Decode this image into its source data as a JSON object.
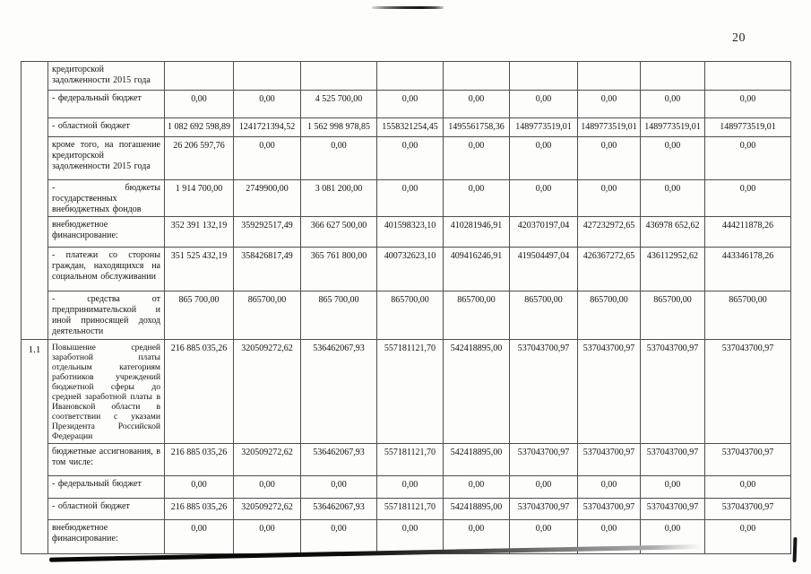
{
  "page": {
    "number": "20"
  },
  "colors": {
    "ink": "#1c1c1c",
    "table_line": "#4e4e4e",
    "artifact_black": "#0c0c0c"
  },
  "table": {
    "rows": [
      {
        "numcell": {
          "text": "",
          "rowspan": 8
        },
        "label": "кредиторской задолженности 2015 года",
        "values": [
          "",
          "",
          "",
          "",
          "",
          "",
          "",
          "",
          ""
        ]
      },
      {
        "label": "- федеральный бюджет",
        "values": [
          "0,00",
          "0,00",
          "4 525 700,00",
          "0,00",
          "0,00",
          "0,00",
          "0,00",
          "0,00",
          "0,00"
        ]
      },
      {
        "label": "- областной бюджет",
        "values": [
          "1 082 692 598,89",
          "1241721394,52",
          "1 562 998 978,85",
          "1558321254,45",
          "1495561758,36",
          "1489773519,01",
          "1489773519,01",
          "1489773519,01",
          "1489773519,01"
        ]
      },
      {
        "label": "кроме того, на погашение кредиторской задолженности 2015 года",
        "values": [
          "26 206 597,76",
          "0,00",
          "0,00",
          "0,00",
          "0,00",
          "0,00",
          "0,00",
          "0,00",
          "0,00"
        ]
      },
      {
        "label": "- бюджеты государственных внебюджетных фондов",
        "values": [
          "1 914 700,00",
          "2749900,00",
          "3 081 200,00",
          "0,00",
          "0,00",
          "0,00",
          "0,00",
          "0,00",
          "0,00"
        ]
      },
      {
        "label": "внебюджетное финансирование:",
        "values": [
          "352 391 132,19",
          "359292517,49",
          "366 627 500,00",
          "401598323,10",
          "410281946,91",
          "420370197,04",
          "427232972,65",
          "436978 652,62",
          "444211878,26"
        ]
      },
      {
        "label": "- платежи со стороны граждан, находящихся на социальном обслуживании",
        "values": [
          "351 525 432,19",
          "358426817,49",
          "365 761 800,00",
          "400732623,10",
          "409416246,91",
          "419504497,04",
          "426367272,65",
          "436112952,62",
          "443346178,26"
        ]
      },
      {
        "label": "- средства от предпринимательской и иной приносящей доход деятельности",
        "values": [
          "865 700,00",
          "865700,00",
          "865 700,00",
          "865700,00",
          "865700,00",
          "865700,00",
          "865700,00",
          "865700,00",
          "865700,00"
        ]
      },
      {
        "numcell": {
          "text": "1.1",
          "rowspan": 5
        },
        "label": "Повышение средней заработной платы отдельным категориям работников учреждений бюджетной сферы до средней заработной платы в Ивановской области в соответствии с указами Президента Российской Федерации",
        "values": [
          "216 885 035,26",
          "320509272,62",
          "536462067,93",
          "557181121,70",
          "542418895,00",
          "537043700,97",
          "537043700,97",
          "537043700,97",
          "537043700,97"
        ]
      },
      {
        "label": "бюджетные ассигнования, в том числе:",
        "values": [
          "216 885 035,26",
          "320509272,62",
          "536462067,93",
          "557181121,70",
          "542418895,00",
          "537043700,97",
          "537043700,97",
          "537043700,97",
          "537043700,97"
        ]
      },
      {
        "label": "- федеральный бюджет",
        "values": [
          "0,00",
          "0,00",
          "0,00",
          "0,00",
          "0,00",
          "0,00",
          "0,00",
          "0,00",
          "0,00"
        ]
      },
      {
        "label": "- областной бюджет",
        "values": [
          "216 885 035,26",
          "320509272,62",
          "536462067,93",
          "557181121,70",
          "542418895,00",
          "537043700,97",
          "537043700,97",
          "537043700,97",
          "537043700,97"
        ]
      },
      {
        "label": "внебюджетное финансирование:",
        "values": [
          "0,00",
          "0,00",
          "0,00",
          "0,00",
          "0,00",
          "0,00",
          "0,00",
          "0,00",
          "0,00"
        ]
      }
    ]
  }
}
